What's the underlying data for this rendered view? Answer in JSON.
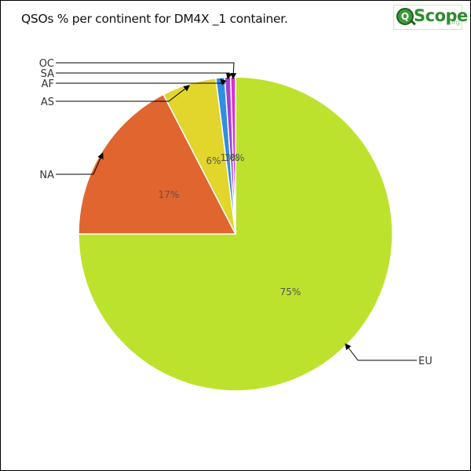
{
  "title": "QSOs % per continent for DM4X _1 container.",
  "logo": {
    "text": "Scope",
    "sub": ".org"
  },
  "chart_data": {
    "type": "pie",
    "title": "QSOs % per continent for DM4X _1 container.",
    "slices": [
      {
        "label": "EU",
        "value": 75.0,
        "pct_label": "75%",
        "color": "#bde22e"
      },
      {
        "label": "NA",
        "value": 17.4,
        "pct_label": "17%",
        "color": "#e0652e"
      },
      {
        "label": "AS",
        "value": 5.6,
        "pct_label": "6%",
        "color": "#e2d52c"
      },
      {
        "label": "AF",
        "value": 0.9,
        "pct_label": "1%",
        "color": "#2e8fe0"
      },
      {
        "label": "SA",
        "value": 0.6,
        "pct_label": "1%",
        "color": "#a63fd6"
      },
      {
        "label": "OC",
        "value": 0.5,
        "pct_label": "0%",
        "color": "#e02ed0"
      }
    ]
  }
}
